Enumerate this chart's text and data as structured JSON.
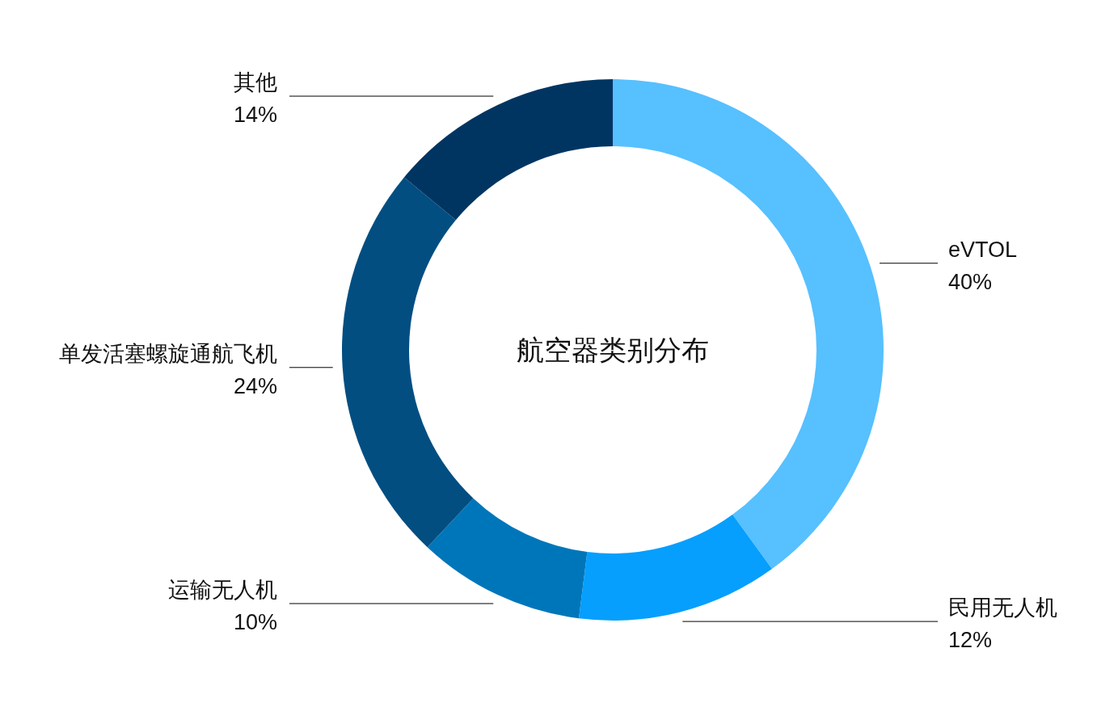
{
  "chart_data": {
    "type": "donut",
    "title": "航空器类别分布",
    "categories": [
      "eVTOL",
      "民用无人机",
      "运输无人机",
      "单发活塞螺旋通航飞机",
      "其他"
    ],
    "values": [
      40,
      12,
      10,
      24,
      14
    ],
    "value_labels": [
      "40%",
      "12%",
      "10%",
      "24%",
      "14%"
    ],
    "colors": [
      "#57c0ff",
      "#069ffd",
      "#0076ba",
      "#024e81",
      "#003562"
    ]
  }
}
